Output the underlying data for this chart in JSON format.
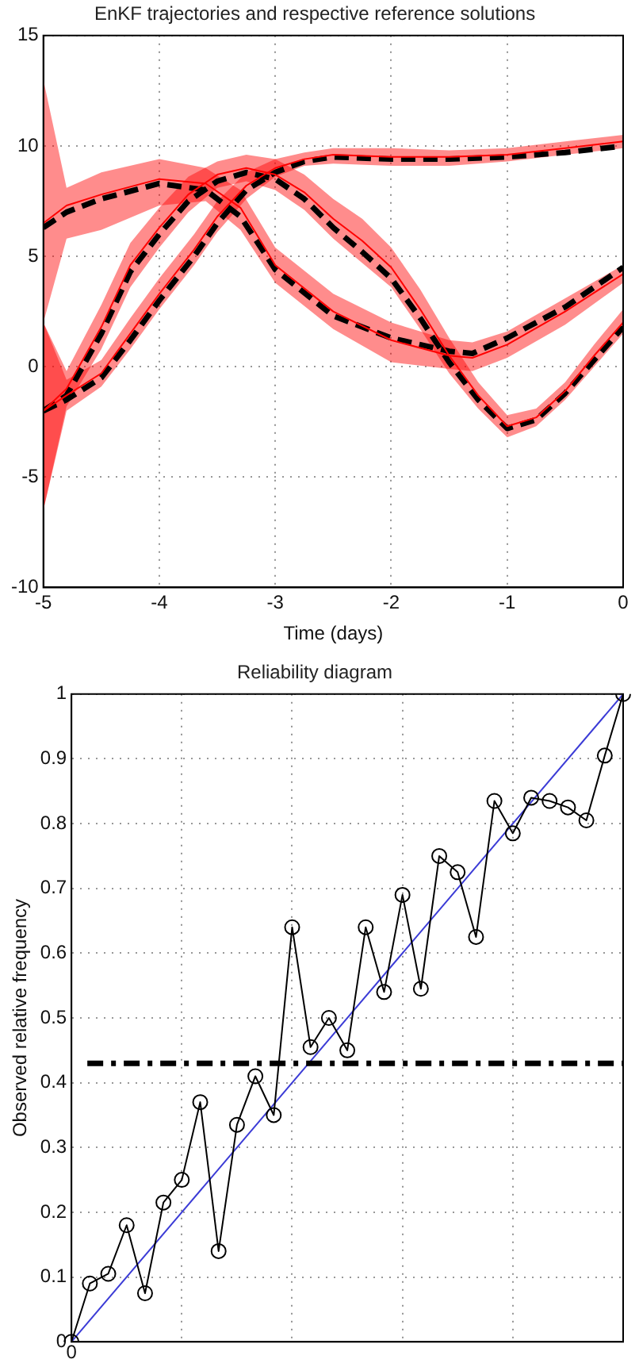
{
  "chart_data": [
    {
      "type": "line",
      "title": "EnKF trajectories and respective reference solutions",
      "xlabel": "Time (days)",
      "xlim": [
        -5,
        0
      ],
      "xticks": [
        -5,
        -4,
        -3,
        -2,
        -1,
        0
      ],
      "ylim": [
        -10,
        15
      ],
      "yticks": [
        -10,
        -5,
        0,
        5,
        10,
        15
      ],
      "grid": true,
      "legend": false,
      "series": [
        {
          "color": "#ff0000",
          "x": [
            -5,
            -4.8,
            -4.5,
            -4,
            -3.6,
            -3.3,
            -3,
            -2.5,
            -2,
            -1.5,
            -1.3,
            -1,
            -0.5,
            0
          ],
          "values": [
            6.5,
            7.3,
            7.8,
            8.5,
            8.3,
            7.2,
            4.6,
            2.5,
            1.2,
            0.5,
            0.4,
            1.0,
            2.5,
            4.2
          ],
          "lower": [
            2,
            5.8,
            6.2,
            7.3,
            7.5,
            6.2,
            3.8,
            1.7,
            0.2,
            -0.1,
            -0.2,
            0.4,
            1.9,
            3.8
          ],
          "upper": [
            13,
            8.1,
            8.8,
            9.4,
            9.0,
            8.0,
            5.4,
            3.3,
            2.0,
            1.2,
            1.1,
            1.6,
            3.1,
            4.6
          ]
        },
        {
          "color": "#ff0000",
          "x": [
            -5,
            -4.8,
            -4.5,
            -4.25,
            -4,
            -3.75,
            -3.5,
            -3.25,
            -3,
            -2.75,
            -2.5,
            -2.25,
            -2,
            -1.75,
            -1.5,
            -1.25,
            -1,
            -0.75,
            -0.5,
            -0.25,
            0
          ],
          "values": [
            -2,
            -1.0,
            1.8,
            4.6,
            6.3,
            7.8,
            8.7,
            9.0,
            8.7,
            7.9,
            6.7,
            5.7,
            4.5,
            2.6,
            0.5,
            -1.3,
            -2.7,
            -2.3,
            -1.1,
            0.5,
            2.0
          ],
          "lower": [
            -6.5,
            -1.8,
            0.8,
            3.6,
            5.4,
            7.0,
            8.1,
            8.4,
            8.0,
            7.1,
            5.8,
            4.7,
            3.6,
            1.7,
            -0.3,
            -1.9,
            -3.2,
            -2.7,
            -1.5,
            0.0,
            1.5
          ],
          "upper": [
            2,
            -0.2,
            2.8,
            5.6,
            7.2,
            8.6,
            9.3,
            9.6,
            9.4,
            8.7,
            7.6,
            6.7,
            5.4,
            3.5,
            1.3,
            -0.7,
            -2.2,
            -1.9,
            -0.7,
            1.0,
            2.6
          ]
        },
        {
          "color": "#ff0000",
          "x": [
            -5,
            -4.8,
            -4.5,
            -4.25,
            -4,
            -3.7,
            -3.5,
            -3.25,
            -3,
            -2.75,
            -2.5,
            -2,
            -1.5,
            -1,
            -0.5,
            0
          ],
          "values": [
            -2,
            -1.3,
            -0.3,
            1.5,
            3.3,
            5.3,
            6.8,
            8.2,
            9.0,
            9.4,
            9.6,
            9.5,
            9.5,
            9.6,
            9.9,
            10.2
          ],
          "lower": [
            -6.5,
            -2.0,
            -0.9,
            0.8,
            2.6,
            4.6,
            6.1,
            7.6,
            8.6,
            9.1,
            9.2,
            9.1,
            9.1,
            9.3,
            9.6,
            9.9
          ],
          "upper": [
            2,
            -0.6,
            0.3,
            2.2,
            4.0,
            6.0,
            7.5,
            8.8,
            9.4,
            9.7,
            9.9,
            9.9,
            9.8,
            9.9,
            10.2,
            10.5
          ]
        },
        {
          "color": "#000000",
          "line_style": "dashed",
          "x": [
            -5,
            -4.8,
            -4.5,
            -4,
            -3.6,
            -3.3,
            -3,
            -2.5,
            -2,
            -1.5,
            -1.3,
            -1,
            -0.5,
            0
          ],
          "values": [
            6.3,
            7.0,
            7.6,
            8.3,
            8.0,
            6.8,
            4.4,
            2.3,
            1.3,
            0.7,
            0.6,
            1.3,
            2.7,
            4.5
          ]
        },
        {
          "color": "#000000",
          "line_style": "dashed",
          "x": [
            -5,
            -4.8,
            -4.5,
            -4.25,
            -4,
            -3.75,
            -3.5,
            -3.25,
            -3,
            -2.75,
            -2.5,
            -2.25,
            -2,
            -1.75,
            -1.5,
            -1.25,
            -1,
            -0.75,
            -0.5,
            -0.25,
            0
          ],
          "values": [
            -2,
            -1.3,
            1.5,
            4.3,
            6.0,
            7.5,
            8.4,
            8.8,
            8.5,
            7.6,
            6.3,
            5.2,
            4.0,
            2.2,
            0.2,
            -1.5,
            -2.8,
            -2.4,
            -1.2,
            0.3,
            1.8
          ]
        },
        {
          "color": "#000000",
          "line_style": "dashed",
          "x": [
            -5,
            -4.8,
            -4.5,
            -4.25,
            -4,
            -3.7,
            -3.5,
            -3.25,
            -3,
            -2.75,
            -2.5,
            -2,
            -1.5,
            -1,
            -0.5,
            0
          ],
          "values": [
            -2,
            -1.5,
            -0.5,
            1.2,
            3.0,
            5.0,
            6.5,
            8.0,
            8.8,
            9.3,
            9.5,
            9.4,
            9.4,
            9.5,
            9.7,
            10.0
          ]
        }
      ]
    },
    {
      "type": "line",
      "title": "Reliability diagram",
      "ylabel": "Observed relative frequency",
      "categories": [
        "0",
        null,
        null,
        null,
        null,
        null,
        null,
        null,
        null,
        null,
        null,
        null,
        null,
        null,
        null,
        null,
        null,
        null,
        null,
        null,
        null,
        null,
        null,
        null,
        null,
        null,
        null,
        null,
        null,
        null,
        null
      ],
      "ylim": [
        0,
        1
      ],
      "yticks": [
        0,
        0.1,
        0.2,
        0.3,
        0.4,
        0.5,
        0.6,
        0.7,
        0.8,
        0.9,
        1
      ],
      "grid": true,
      "legend": false,
      "ref_lines": [
        {
          "axis": "y",
          "value": 0.43,
          "color": "#000000"
        }
      ],
      "series": [
        {
          "color": "#000000",
          "marker": "circle",
          "values": [
            0,
            0.09,
            0.105,
            0.18,
            0.075,
            0.215,
            0.25,
            0.37,
            0.14,
            0.335,
            0.41,
            0.35,
            0.64,
            0.455,
            0.5,
            0.45,
            0.64,
            0.54,
            0.69,
            0.545,
            0.75,
            0.725,
            0.625,
            0.835,
            0.785,
            0.84,
            0.835,
            0.825,
            0.805,
            0.905,
            1
          ]
        },
        {
          "color": "#3b3bd6",
          "values": [
            0,
            null,
            null,
            null,
            null,
            null,
            null,
            null,
            null,
            null,
            null,
            null,
            null,
            null,
            null,
            null,
            null,
            null,
            null,
            null,
            null,
            null,
            null,
            null,
            null,
            null,
            null,
            null,
            null,
            null,
            1
          ]
        }
      ]
    }
  ]
}
